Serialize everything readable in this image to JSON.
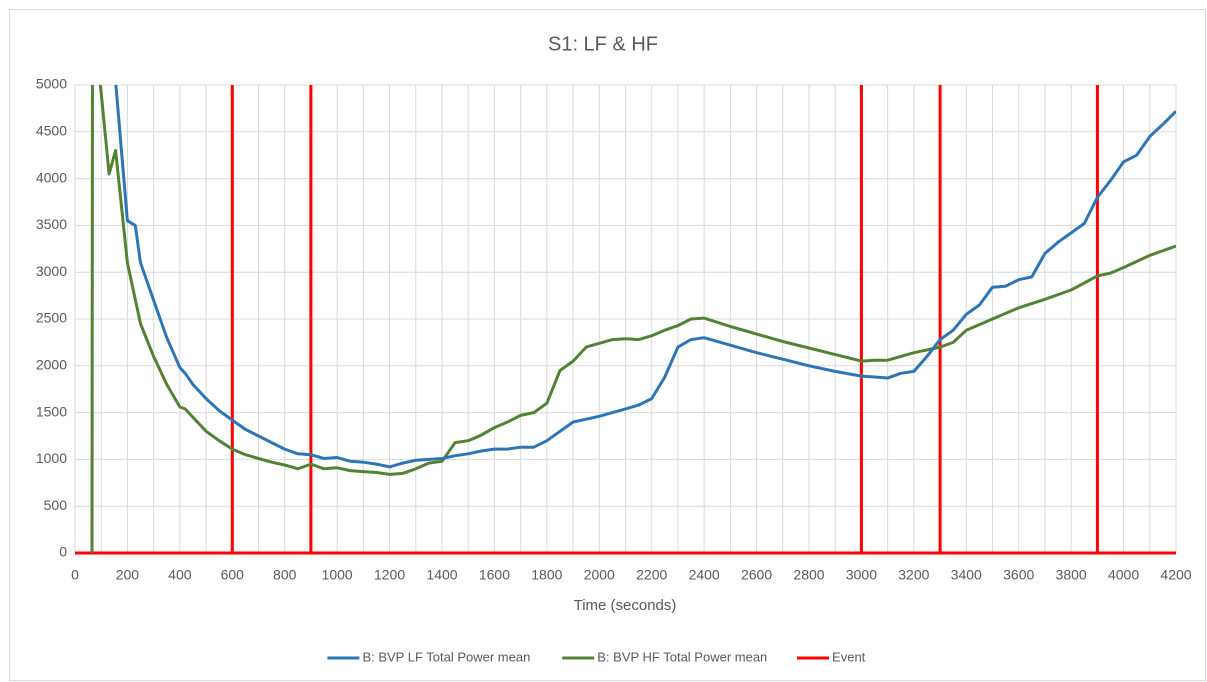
{
  "chart_data": {
    "type": "line",
    "title": "S1: LF & HF",
    "x_label": "Time (seconds)",
    "xlim": [
      0,
      4200
    ],
    "ylim": [
      0,
      5000
    ],
    "xticks": [
      0,
      200,
      400,
      600,
      800,
      1000,
      1200,
      1400,
      1600,
      1800,
      2000,
      2200,
      2400,
      2600,
      2800,
      3000,
      3200,
      3400,
      3600,
      3800,
      4000,
      4200
    ],
    "xminorticks": [
      100,
      300,
      500,
      700,
      900,
      1100,
      1300,
      1500,
      1700,
      1900,
      2100,
      2300,
      2500,
      2700,
      2900,
      3100,
      3300,
      3500,
      3700,
      3900,
      4100
    ],
    "yticks": [
      0,
      500,
      1000,
      1500,
      2000,
      2500,
      3000,
      3500,
      4000,
      4500,
      5000
    ],
    "grid": true,
    "legend": "bottom",
    "series": [
      {
        "name": "B: BVP LF Total Power mean",
        "color": "#2e75b6",
        "x": [
          150,
          200,
          230,
          250,
          300,
          350,
          400,
          420,
          450,
          500,
          550,
          600,
          650,
          700,
          750,
          800,
          850,
          900,
          950,
          1000,
          1050,
          1100,
          1150,
          1200,
          1250,
          1300,
          1350,
          1400,
          1450,
          1500,
          1550,
          1600,
          1650,
          1700,
          1750,
          1800,
          1850,
          1900,
          1950,
          2000,
          2050,
          2100,
          2150,
          2200,
          2250,
          2300,
          2350,
          2400,
          2500,
          2600,
          2700,
          2800,
          2900,
          3000,
          3050,
          3100,
          3150,
          3200,
          3250,
          3300,
          3350,
          3400,
          3450,
          3500,
          3550,
          3600,
          3650,
          3700,
          3750,
          3800,
          3850,
          3900,
          3950,
          4000,
          4050,
          4100,
          4150,
          4200
        ],
        "values": [
          5200,
          3550,
          3500,
          3100,
          2700,
          2300,
          1980,
          1920,
          1800,
          1650,
          1520,
          1420,
          1320,
          1250,
          1180,
          1110,
          1060,
          1050,
          1010,
          1020,
          980,
          970,
          950,
          920,
          960,
          990,
          1000,
          1010,
          1040,
          1060,
          1090,
          1110,
          1110,
          1130,
          1130,
          1200,
          1300,
          1400,
          1430,
          1460,
          1500,
          1540,
          1580,
          1650,
          1880,
          2200,
          2280,
          2300,
          2220,
          2140,
          2070,
          2000,
          1940,
          1890,
          1880,
          1870,
          1920,
          1940,
          2100,
          2280,
          2380,
          2550,
          2650,
          2840,
          2850,
          2920,
          2950,
          3200,
          3320,
          3420,
          3520,
          3800,
          3980,
          4180,
          4250,
          4450,
          4580,
          4720
        ]
      },
      {
        "name": "B: BVP HF Total Power mean",
        "color": "#548235",
        "x": [
          65,
          68,
          90,
          130,
          155,
          200,
          250,
          300,
          350,
          400,
          420,
          500,
          550,
          600,
          650,
          700,
          750,
          800,
          850,
          880,
          900,
          950,
          1000,
          1050,
          1100,
          1150,
          1200,
          1250,
          1300,
          1350,
          1400,
          1450,
          1500,
          1550,
          1600,
          1650,
          1700,
          1750,
          1800,
          1850,
          1900,
          1950,
          2000,
          2050,
          2100,
          2150,
          2200,
          2250,
          2300,
          2350,
          2400,
          2500,
          2600,
          2700,
          2800,
          2900,
          3000,
          3050,
          3100,
          3200,
          3300,
          3350,
          3400,
          3500,
          3600,
          3700,
          3800,
          3900,
          3950,
          4000,
          4100,
          4200
        ],
        "values": [
          0,
          9000,
          5200,
          4050,
          4300,
          3100,
          2450,
          2100,
          1800,
          1560,
          1540,
          1300,
          1200,
          1110,
          1050,
          1010,
          970,
          940,
          900,
          930,
          950,
          900,
          910,
          880,
          870,
          860,
          840,
          850,
          900,
          960,
          980,
          1180,
          1200,
          1260,
          1340,
          1400,
          1470,
          1500,
          1600,
          1950,
          2050,
          2200,
          2240,
          2280,
          2290,
          2280,
          2320,
          2380,
          2430,
          2500,
          2510,
          2420,
          2340,
          2260,
          2190,
          2120,
          2050,
          2060,
          2060,
          2140,
          2200,
          2250,
          2380,
          2500,
          2620,
          2710,
          2810,
          2960,
          2990,
          3050,
          3180,
          3280
        ]
      },
      {
        "name": "Event",
        "color": "#ff0000",
        "x": [
          0,
          600,
          600,
          600,
          900,
          900,
          900,
          3000,
          3000,
          3000,
          3300,
          3300,
          3300,
          3900,
          3900,
          3900,
          4200
        ],
        "values": [
          0,
          0,
          5000,
          0,
          0,
          5000,
          0,
          0,
          5000,
          0,
          0,
          5000,
          0,
          0,
          5000,
          0,
          0
        ]
      }
    ]
  }
}
